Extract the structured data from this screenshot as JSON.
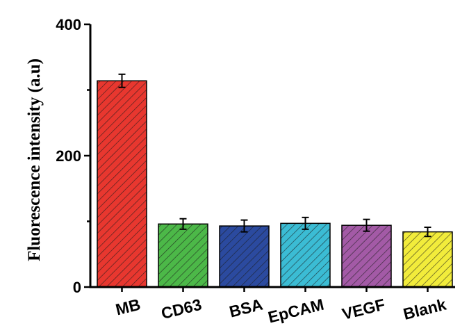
{
  "chart_data": {
    "type": "bar",
    "title": "",
    "xlabel": "",
    "ylabel": "Fluorescence intensity (a.u)",
    "ylim": [
      0,
      400
    ],
    "yticks": [
      0,
      200,
      400
    ],
    "grid": false,
    "categories": [
      "MB",
      "CD63",
      "BSA",
      "EpCAM",
      "VEGF",
      "Blank"
    ],
    "values": [
      314,
      96,
      93,
      97,
      94,
      84
    ],
    "errors": [
      10,
      8,
      9,
      9,
      9,
      7
    ],
    "colors": [
      "#e8372f",
      "#4cb848",
      "#2b4a9f",
      "#3bbcd4",
      "#a35aa6",
      "#f2ec3b"
    ]
  }
}
